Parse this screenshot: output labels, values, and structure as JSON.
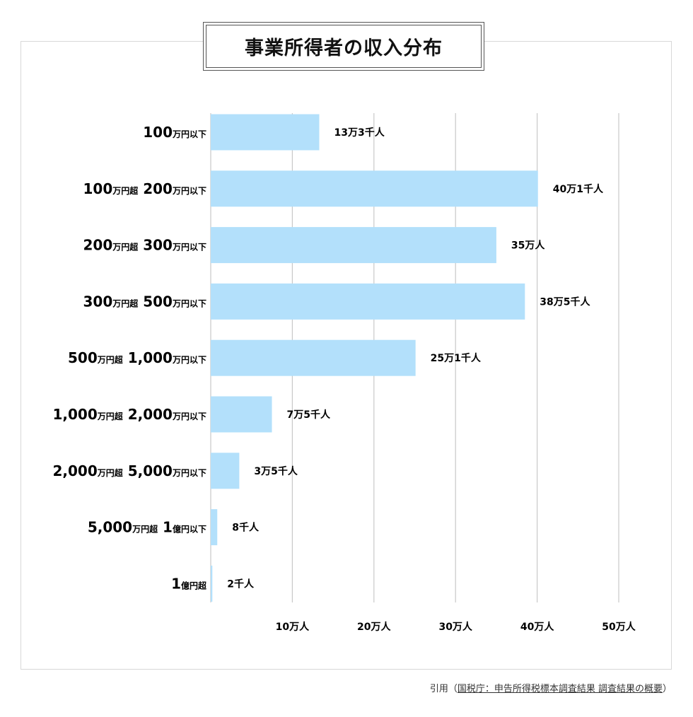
{
  "title": "事業所得者の収入分布",
  "citation": {
    "prefix": "引用（",
    "source": "国税庁：申告所得税標本調査結果 調査結果の概要",
    "suffix": "）"
  },
  "colors": {
    "bar": "#b3e0fb",
    "grid": "#c8c8c8",
    "axis": "#c8c8c8"
  },
  "chart_data": {
    "type": "bar",
    "orientation": "horizontal",
    "title": "事業所得者の収入分布",
    "xlim": [
      0,
      500000
    ],
    "x_ticks": [
      {
        "value": 100000,
        "label": "10万人"
      },
      {
        "value": 200000,
        "label": "20万人"
      },
      {
        "value": 300000,
        "label": "30万人"
      },
      {
        "value": 400000,
        "label": "40万人"
      },
      {
        "value": 500000,
        "label": "50万人"
      }
    ],
    "grid": true,
    "categories": [
      {
        "parts": [
          {
            "t": "100",
            "s": "big"
          },
          {
            "t": "万円以下",
            "s": "small"
          }
        ]
      },
      {
        "parts": [
          {
            "t": "100",
            "s": "big"
          },
          {
            "t": "万円超",
            "s": "small"
          },
          {
            "t": " 200",
            "s": "big"
          },
          {
            "t": "万円以下",
            "s": "small"
          }
        ]
      },
      {
        "parts": [
          {
            "t": "200",
            "s": "big"
          },
          {
            "t": "万円超",
            "s": "small"
          },
          {
            "t": " 300",
            "s": "big"
          },
          {
            "t": "万円以下",
            "s": "small"
          }
        ]
      },
      {
        "parts": [
          {
            "t": "300",
            "s": "big"
          },
          {
            "t": "万円超",
            "s": "small"
          },
          {
            "t": " 500",
            "s": "big"
          },
          {
            "t": "万円以下",
            "s": "small"
          }
        ]
      },
      {
        "parts": [
          {
            "t": "500",
            "s": "big"
          },
          {
            "t": "万円超",
            "s": "small"
          },
          {
            "t": " 1,000",
            "s": "big"
          },
          {
            "t": "万円以下",
            "s": "small"
          }
        ]
      },
      {
        "parts": [
          {
            "t": "1,000",
            "s": "big"
          },
          {
            "t": "万円超",
            "s": "small"
          },
          {
            "t": " 2,000",
            "s": "big"
          },
          {
            "t": "万円以下",
            "s": "small"
          }
        ]
      },
      {
        "parts": [
          {
            "t": "2,000",
            "s": "big"
          },
          {
            "t": "万円超",
            "s": "small"
          },
          {
            "t": " 5,000",
            "s": "big"
          },
          {
            "t": "万円以下",
            "s": "small"
          }
        ]
      },
      {
        "parts": [
          {
            "t": "5,000",
            "s": "big"
          },
          {
            "t": "万円超",
            "s": "small"
          },
          {
            "t": " 1",
            "s": "big"
          },
          {
            "t": "億円以下",
            "s": "small"
          }
        ]
      },
      {
        "parts": [
          {
            "t": "1",
            "s": "big"
          },
          {
            "t": "億円超",
            "s": "small"
          }
        ]
      }
    ],
    "values": [
      133000,
      401000,
      350000,
      385000,
      251000,
      75000,
      35000,
      8000,
      2000
    ],
    "value_labels": [
      "13万3千人",
      "40万1千人",
      "35万人",
      "38万5千人",
      "25万1千人",
      "7万5千人",
      "3万5千人",
      "8千人",
      "2千人"
    ]
  }
}
